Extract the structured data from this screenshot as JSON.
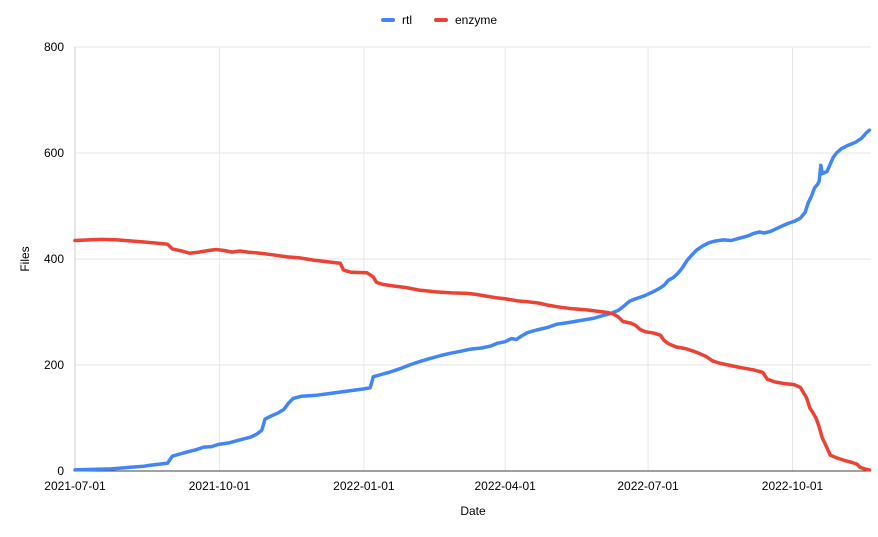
{
  "chart_data": {
    "type": "line",
    "title": "",
    "xlabel": "Date",
    "ylabel": "Files",
    "grid": true,
    "legend_position": "top",
    "ylim": [
      0,
      800
    ],
    "y_ticks": [
      0,
      200,
      400,
      600,
      800
    ],
    "x_tick_labels": [
      "2021-07-01",
      "2021-10-01",
      "2022-01-01",
      "2022-04-01",
      "2022-07-01",
      "2022-10-01"
    ],
    "x_domain": [
      "2021-07-01",
      "2022-11-20"
    ],
    "colors": {
      "grid": "#e6e6e6",
      "y_axis_line": "#cccccc",
      "x_axis_line": "#424242",
      "text": "#000000"
    },
    "series": [
      {
        "name": "rtl",
        "color": "#4285F4",
        "points": [
          [
            "2021-07-01",
            2
          ],
          [
            "2021-07-12",
            3
          ],
          [
            "2021-07-24",
            4
          ],
          [
            "2021-08-05",
            7
          ],
          [
            "2021-08-14",
            9
          ],
          [
            "2021-08-18",
            11
          ],
          [
            "2021-08-24",
            13
          ],
          [
            "2021-08-29",
            15
          ],
          [
            "2021-09-01",
            28
          ],
          [
            "2021-09-08",
            34
          ],
          [
            "2021-09-13",
            38
          ],
          [
            "2021-09-16",
            40
          ],
          [
            "2021-09-21",
            45
          ],
          [
            "2021-09-26",
            46
          ],
          [
            "2021-09-30",
            50
          ],
          [
            "2021-10-07",
            53
          ],
          [
            "2021-10-13",
            58
          ],
          [
            "2021-10-17",
            61
          ],
          [
            "2021-10-21",
            64
          ],
          [
            "2021-10-25",
            70
          ],
          [
            "2021-10-28",
            77
          ],
          [
            "2021-10-30",
            98
          ],
          [
            "2021-11-03",
            104
          ],
          [
            "2021-11-07",
            109
          ],
          [
            "2021-11-11",
            116
          ],
          [
            "2021-11-14",
            128
          ],
          [
            "2021-11-17",
            137
          ],
          [
            "2021-11-22",
            141
          ],
          [
            "2021-12-02",
            143
          ],
          [
            "2021-12-12",
            147
          ],
          [
            "2021-12-22",
            151
          ],
          [
            "2022-01-01",
            155
          ],
          [
            "2022-01-05",
            157
          ],
          [
            "2022-01-07",
            178
          ],
          [
            "2022-01-12",
            182
          ],
          [
            "2022-01-18",
            187
          ],
          [
            "2022-01-24",
            193
          ],
          [
            "2022-01-30",
            200
          ],
          [
            "2022-02-06",
            207
          ],
          [
            "2022-02-12",
            212
          ],
          [
            "2022-02-19",
            218
          ],
          [
            "2022-02-25",
            222
          ],
          [
            "2022-03-04",
            226
          ],
          [
            "2022-03-10",
            230
          ],
          [
            "2022-03-17",
            232
          ],
          [
            "2022-03-23",
            236
          ],
          [
            "2022-03-27",
            241
          ],
          [
            "2022-04-01",
            244
          ],
          [
            "2022-04-05",
            250
          ],
          [
            "2022-04-08",
            248
          ],
          [
            "2022-04-11",
            254
          ],
          [
            "2022-04-15",
            261
          ],
          [
            "2022-04-21",
            266
          ],
          [
            "2022-04-28",
            271
          ],
          [
            "2022-05-04",
            277
          ],
          [
            "2022-05-11",
            280
          ],
          [
            "2022-05-19",
            284
          ],
          [
            "2022-05-27",
            288
          ],
          [
            "2022-06-02",
            293
          ],
          [
            "2022-06-07",
            297
          ],
          [
            "2022-06-12",
            303
          ],
          [
            "2022-06-16",
            312
          ],
          [
            "2022-06-19",
            320
          ],
          [
            "2022-06-23",
            325
          ],
          [
            "2022-06-29",
            331
          ],
          [
            "2022-07-04",
            338
          ],
          [
            "2022-07-08",
            344
          ],
          [
            "2022-07-11",
            350
          ],
          [
            "2022-07-14",
            360
          ],
          [
            "2022-07-17",
            365
          ],
          [
            "2022-07-20",
            373
          ],
          [
            "2022-07-23",
            384
          ],
          [
            "2022-07-26",
            398
          ],
          [
            "2022-07-29",
            408
          ],
          [
            "2022-08-01",
            417
          ],
          [
            "2022-08-05",
            425
          ],
          [
            "2022-08-09",
            431
          ],
          [
            "2022-08-13",
            434
          ],
          [
            "2022-08-18",
            436
          ],
          [
            "2022-08-23",
            435
          ],
          [
            "2022-08-28",
            439
          ],
          [
            "2022-09-02",
            443
          ],
          [
            "2022-09-06",
            448
          ],
          [
            "2022-09-10",
            451
          ],
          [
            "2022-09-13",
            449
          ],
          [
            "2022-09-17",
            452
          ],
          [
            "2022-09-22",
            459
          ],
          [
            "2022-09-28",
            467
          ],
          [
            "2022-10-02",
            471
          ],
          [
            "2022-10-06",
            477
          ],
          [
            "2022-10-09",
            488
          ],
          [
            "2022-10-11",
            506
          ],
          [
            "2022-10-13",
            518
          ],
          [
            "2022-10-15",
            534
          ],
          [
            "2022-10-17",
            541
          ],
          [
            "2022-10-18",
            547
          ],
          [
            "2022-10-19",
            577
          ],
          [
            "2022-10-20",
            561
          ],
          [
            "2022-10-23",
            565
          ],
          [
            "2022-10-27",
            592
          ],
          [
            "2022-10-29",
            600
          ],
          [
            "2022-11-01",
            608
          ],
          [
            "2022-11-05",
            614
          ],
          [
            "2022-11-10",
            620
          ],
          [
            "2022-11-14",
            628
          ],
          [
            "2022-11-17",
            638
          ],
          [
            "2022-11-19",
            643
          ]
        ]
      },
      {
        "name": "enzyme",
        "color": "#EA4335",
        "points": [
          [
            "2021-07-01",
            435
          ],
          [
            "2021-07-10",
            436
          ],
          [
            "2021-07-18",
            437
          ],
          [
            "2021-07-28",
            436
          ],
          [
            "2021-08-06",
            434
          ],
          [
            "2021-08-14",
            432
          ],
          [
            "2021-08-22",
            430
          ],
          [
            "2021-08-29",
            428
          ],
          [
            "2021-09-01",
            419
          ],
          [
            "2021-09-07",
            415
          ],
          [
            "2021-09-12",
            411
          ],
          [
            "2021-09-18",
            413
          ],
          [
            "2021-09-24",
            416
          ],
          [
            "2021-09-29",
            418
          ],
          [
            "2021-10-04",
            416
          ],
          [
            "2021-10-09",
            413
          ],
          [
            "2021-10-14",
            415
          ],
          [
            "2021-10-19",
            413
          ],
          [
            "2021-10-27",
            411
          ],
          [
            "2021-11-04",
            408
          ],
          [
            "2021-11-13",
            404
          ],
          [
            "2021-11-21",
            402
          ],
          [
            "2021-11-30",
            398
          ],
          [
            "2021-12-08",
            395
          ],
          [
            "2021-12-14",
            393
          ],
          [
            "2021-12-17",
            392
          ],
          [
            "2021-12-19",
            379
          ],
          [
            "2021-12-24",
            375
          ],
          [
            "2022-01-03",
            374
          ],
          [
            "2022-01-07",
            366
          ],
          [
            "2022-01-09",
            356
          ],
          [
            "2022-01-13",
            352
          ],
          [
            "2022-01-20",
            349
          ],
          [
            "2022-01-28",
            346
          ],
          [
            "2022-02-06",
            341
          ],
          [
            "2022-02-16",
            338
          ],
          [
            "2022-02-26",
            336
          ],
          [
            "2022-03-08",
            335
          ],
          [
            "2022-03-14",
            333
          ],
          [
            "2022-03-20",
            330
          ],
          [
            "2022-03-26",
            327
          ],
          [
            "2022-04-01",
            325
          ],
          [
            "2022-04-09",
            321
          ],
          [
            "2022-04-16",
            319
          ],
          [
            "2022-04-22",
            317
          ],
          [
            "2022-04-28",
            313
          ],
          [
            "2022-05-06",
            309
          ],
          [
            "2022-05-14",
            306
          ],
          [
            "2022-05-23",
            304
          ],
          [
            "2022-05-31",
            301
          ],
          [
            "2022-06-05",
            299
          ],
          [
            "2022-06-09",
            296
          ],
          [
            "2022-06-12",
            291
          ],
          [
            "2022-06-15",
            282
          ],
          [
            "2022-06-20",
            279
          ],
          [
            "2022-06-23",
            275
          ],
          [
            "2022-06-26",
            267
          ],
          [
            "2022-06-29",
            263
          ],
          [
            "2022-07-05",
            260
          ],
          [
            "2022-07-09",
            256
          ],
          [
            "2022-07-11",
            247
          ],
          [
            "2022-07-14",
            240
          ],
          [
            "2022-07-19",
            234
          ],
          [
            "2022-07-25",
            231
          ],
          [
            "2022-08-01",
            224
          ],
          [
            "2022-08-07",
            216
          ],
          [
            "2022-08-11",
            208
          ],
          [
            "2022-08-15",
            204
          ],
          [
            "2022-08-21",
            200
          ],
          [
            "2022-08-29",
            195
          ],
          [
            "2022-09-06",
            191
          ],
          [
            "2022-09-12",
            186
          ],
          [
            "2022-09-15",
            173
          ],
          [
            "2022-09-20",
            168
          ],
          [
            "2022-09-26",
            165
          ],
          [
            "2022-10-02",
            163
          ],
          [
            "2022-10-06",
            158
          ],
          [
            "2022-10-08",
            148
          ],
          [
            "2022-10-10",
            138
          ],
          [
            "2022-10-12",
            119
          ],
          [
            "2022-10-14",
            110
          ],
          [
            "2022-10-16",
            100
          ],
          [
            "2022-10-18",
            83
          ],
          [
            "2022-10-20",
            62
          ],
          [
            "2022-10-22",
            50
          ],
          [
            "2022-10-25",
            30
          ],
          [
            "2022-10-29",
            25
          ],
          [
            "2022-11-03",
            20
          ],
          [
            "2022-11-08",
            16
          ],
          [
            "2022-11-11",
            13
          ],
          [
            "2022-11-13",
            7
          ],
          [
            "2022-11-16",
            4
          ],
          [
            "2022-11-19",
            2
          ]
        ]
      }
    ]
  }
}
